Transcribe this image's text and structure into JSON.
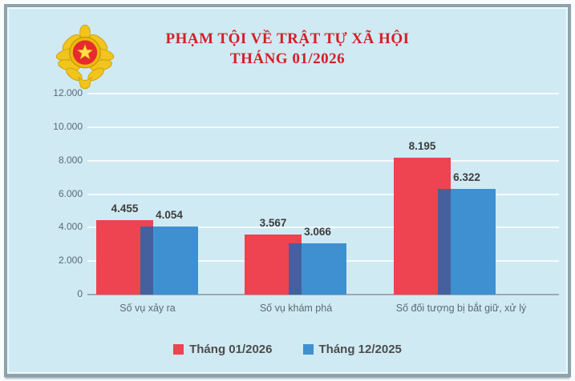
{
  "header": {
    "title_line1": "PHẠM TỘI VỀ TRẬT TỰ XÃ HỘI",
    "title_line2": "THÁNG 01/2026",
    "title_color": "#d41f27",
    "logo": "vietnam-public-security-emblem"
  },
  "chart_data": {
    "type": "bar",
    "title": "PHẠM TỘI VỀ TRẬT TỰ XÃ HỘI THÁNG 01/2026",
    "categories": [
      "Số vụ xảy ra",
      "Số vụ khám phá",
      "Số đối tượng bị bắt giữ, xử lý"
    ],
    "series": [
      {
        "name": "Tháng 01/2026",
        "color": "#ee4350",
        "values": [
          4455,
          3567,
          8195
        ],
        "value_labels": [
          "4.455",
          "3.567",
          "8.195"
        ]
      },
      {
        "name": "Tháng 12/2025",
        "color": "#3f90d0",
        "overlap_color": "#44619e",
        "values": [
          4054,
          3066,
          6322
        ],
        "value_labels": [
          "4.054",
          "3.066",
          "6.322"
        ]
      }
    ],
    "ylim": [
      0,
      12000
    ],
    "ytick_labels": [
      "0",
      "2.000",
      "4.000",
      "6.000",
      "8.000",
      "10.000",
      "12.000"
    ],
    "grid": true,
    "legend_position": "bottom",
    "background_color": "#cfeaf3"
  }
}
